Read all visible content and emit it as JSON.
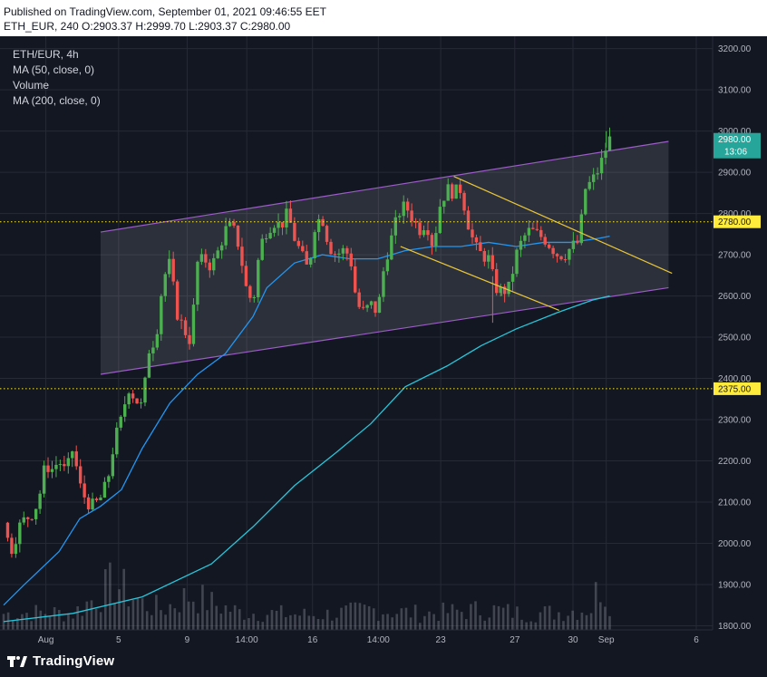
{
  "header": {
    "published": "Published on TradingView.com, September 01, 2021 09:46:55 EET",
    "ohlc": "ETH_EUR, 240 O:2903.37 H:2999.70 L:2903.37 C:2980.00"
  },
  "legend": {
    "symbol": "ETH/EUR, 4h",
    "ma50": "MA (50, close, 0)",
    "volume": "Volume",
    "ma200": "MA (200, close, 0)"
  },
  "footer": {
    "brand": "TradingView"
  },
  "colors": {
    "background": "#131722",
    "grid": "#262a35",
    "up": "#26a69a",
    "down": "#ef5350",
    "up_candle": "#4caf50",
    "ma50": "#2196f3",
    "ma200": "#26c6da",
    "channel": "#9c5cc9",
    "wedge": "#e8c53a",
    "level": "#ffeb3b",
    "price_badge": "#26a69a",
    "level_badge": "#ffeb3b"
  },
  "chart_data": {
    "type": "candlestick",
    "symbol": "ETH/EUR",
    "interval": "4h",
    "ylim": [
      1790,
      3230
    ],
    "y_ticks": [
      1800,
      1900,
      2000,
      2100,
      2200,
      2300,
      2400,
      2500,
      2600,
      2700,
      2800,
      2900,
      3000,
      3100,
      3200
    ],
    "y_tick_labels": [
      "1800.00",
      "1900.00",
      "2000.00",
      "2100.00",
      "2200.00",
      "2300.00",
      "2400.00",
      "2500.00",
      "2600.00",
      "2700.00",
      "2800.00",
      "2900.00",
      "3000.00",
      "3100.00",
      "3200.00"
    ],
    "x_ticks": [
      {
        "label": "Aug",
        "pos": 0.061
      },
      {
        "label": "5",
        "pos": 0.166
      },
      {
        "label": "9",
        "pos": 0.265
      },
      {
        "label": "14:00",
        "pos": 0.351
      },
      {
        "label": "16",
        "pos": 0.446
      },
      {
        "label": "14:00",
        "pos": 0.541
      },
      {
        "label": "23",
        "pos": 0.631
      },
      {
        "label": "27",
        "pos": 0.738
      },
      {
        "label": "30",
        "pos": 0.822
      },
      {
        "label": "Sep",
        "pos": 0.87
      },
      {
        "label": "6",
        "pos": 1.0
      }
    ],
    "grid": true,
    "path": [
      [
        0.0,
        2050
      ],
      [
        0.01,
        1980
      ],
      [
        0.025,
        2050
      ],
      [
        0.04,
        2070
      ],
      [
        0.05,
        2100
      ],
      [
        0.06,
        2190
      ],
      [
        0.07,
        2180
      ],
      [
        0.08,
        2200
      ],
      [
        0.09,
        2170
      ],
      [
        0.1,
        2230
      ],
      [
        0.11,
        2140
      ],
      [
        0.12,
        2100
      ],
      [
        0.13,
        2090
      ],
      [
        0.14,
        2110
      ],
      [
        0.15,
        2150
      ],
      [
        0.16,
        2250
      ],
      [
        0.17,
        2300
      ],
      [
        0.18,
        2380
      ],
      [
        0.19,
        2350
      ],
      [
        0.2,
        2330
      ],
      [
        0.21,
        2470
      ],
      [
        0.22,
        2500
      ],
      [
        0.23,
        2640
      ],
      [
        0.24,
        2680
      ],
      [
        0.25,
        2560
      ],
      [
        0.26,
        2520
      ],
      [
        0.27,
        2490
      ],
      [
        0.28,
        2680
      ],
      [
        0.29,
        2690
      ],
      [
        0.3,
        2670
      ],
      [
        0.31,
        2710
      ],
      [
        0.32,
        2760
      ],
      [
        0.33,
        2770
      ],
      [
        0.34,
        2720
      ],
      [
        0.35,
        2620
      ],
      [
        0.36,
        2580
      ],
      [
        0.37,
        2720
      ],
      [
        0.38,
        2760
      ],
      [
        0.39,
        2780
      ],
      [
        0.4,
        2770
      ],
      [
        0.41,
        2800
      ],
      [
        0.42,
        2740
      ],
      [
        0.43,
        2700
      ],
      [
        0.44,
        2660
      ],
      [
        0.45,
        2780
      ],
      [
        0.46,
        2790
      ],
      [
        0.47,
        2720
      ],
      [
        0.48,
        2700
      ],
      [
        0.49,
        2710
      ],
      [
        0.5,
        2700
      ],
      [
        0.51,
        2580
      ],
      [
        0.52,
        2560
      ],
      [
        0.53,
        2580
      ],
      [
        0.54,
        2560
      ],
      [
        0.55,
        2680
      ],
      [
        0.56,
        2740
      ],
      [
        0.57,
        2800
      ],
      [
        0.58,
        2820
      ],
      [
        0.59,
        2790
      ],
      [
        0.6,
        2760
      ],
      [
        0.61,
        2780
      ],
      [
        0.62,
        2720
      ],
      [
        0.63,
        2820
      ],
      [
        0.64,
        2860
      ],
      [
        0.65,
        2850
      ],
      [
        0.66,
        2860
      ],
      [
        0.67,
        2780
      ],
      [
        0.68,
        2720
      ],
      [
        0.69,
        2700
      ],
      [
        0.7,
        2690
      ],
      [
        0.71,
        2620
      ],
      [
        0.72,
        2610
      ],
      [
        0.73,
        2620
      ],
      [
        0.74,
        2700
      ],
      [
        0.75,
        2740
      ],
      [
        0.76,
        2760
      ],
      [
        0.77,
        2750
      ],
      [
        0.78,
        2740
      ],
      [
        0.79,
        2720
      ],
      [
        0.8,
        2700
      ],
      [
        0.81,
        2700
      ],
      [
        0.82,
        2720
      ],
      [
        0.83,
        2730
      ],
      [
        0.84,
        2860
      ],
      [
        0.85,
        2880
      ],
      [
        0.86,
        2910
      ],
      [
        0.87,
        2960
      ],
      [
        0.875,
        2980
      ]
    ],
    "wicks": [
      {
        "pos": 0.706,
        "low": 2535
      },
      {
        "pos": 0.719,
        "low": 2600
      },
      {
        "pos": 0.87,
        "high": 3000
      }
    ],
    "volume_max": 280,
    "volume_profile": [
      [
        0.0,
        55
      ],
      [
        0.06,
        60
      ],
      [
        0.1,
        55
      ],
      [
        0.16,
        160
      ],
      [
        0.2,
        90
      ],
      [
        0.23,
        70
      ],
      [
        0.27,
        120
      ],
      [
        0.3,
        90
      ],
      [
        0.34,
        60
      ],
      [
        0.4,
        55
      ],
      [
        0.45,
        50
      ],
      [
        0.5,
        60
      ],
      [
        0.53,
        70
      ],
      [
        0.6,
        55
      ],
      [
        0.64,
        60
      ],
      [
        0.7,
        70
      ],
      [
        0.75,
        55
      ],
      [
        0.8,
        60
      ],
      [
        0.85,
        75
      ],
      [
        0.86,
        170
      ],
      [
        0.87,
        120
      ],
      [
        0.875,
        110
      ]
    ],
    "ma50": [
      [
        0.0,
        1850
      ],
      [
        0.03,
        1900
      ],
      [
        0.08,
        1980
      ],
      [
        0.11,
        2060
      ],
      [
        0.14,
        2090
      ],
      [
        0.17,
        2130
      ],
      [
        0.2,
        2230
      ],
      [
        0.24,
        2340
      ],
      [
        0.28,
        2410
      ],
      [
        0.32,
        2460
      ],
      [
        0.36,
        2550
      ],
      [
        0.38,
        2620
      ],
      [
        0.42,
        2680
      ],
      [
        0.46,
        2700
      ],
      [
        0.5,
        2690
      ],
      [
        0.54,
        2690
      ],
      [
        0.58,
        2710
      ],
      [
        0.62,
        2720
      ],
      [
        0.66,
        2720
      ],
      [
        0.7,
        2730
      ],
      [
        0.74,
        2720
      ],
      [
        0.78,
        2730
      ],
      [
        0.82,
        2730
      ],
      [
        0.86,
        2740
      ],
      [
        0.875,
        2745
      ]
    ],
    "ma200": [
      [
        0.0,
        1810
      ],
      [
        0.1,
        1830
      ],
      [
        0.2,
        1870
      ],
      [
        0.3,
        1950
      ],
      [
        0.36,
        2040
      ],
      [
        0.42,
        2140
      ],
      [
        0.48,
        2220
      ],
      [
        0.53,
        2290
      ],
      [
        0.58,
        2380
      ],
      [
        0.64,
        2430
      ],
      [
        0.69,
        2480
      ],
      [
        0.74,
        2520
      ],
      [
        0.8,
        2560
      ],
      [
        0.85,
        2590
      ],
      [
        0.875,
        2600
      ]
    ],
    "channel": {
      "upper": [
        [
          0.14,
          2755
        ],
        [
          0.96,
          2975
        ]
      ],
      "lower": [
        [
          0.14,
          2410
        ],
        [
          0.96,
          2620
        ]
      ]
    },
    "wedge": {
      "upper": [
        [
          0.65,
          2890
        ],
        [
          0.965,
          2655
        ]
      ],
      "lower": [
        [
          0.573,
          2720
        ],
        [
          0.802,
          2565
        ]
      ]
    },
    "levels": [
      {
        "value": 2780,
        "label": "2780.00"
      },
      {
        "value": 2375,
        "label": "2375.00"
      }
    ],
    "last_price": {
      "value": 2980,
      "label": "2980.00",
      "countdown": "13:06"
    }
  }
}
